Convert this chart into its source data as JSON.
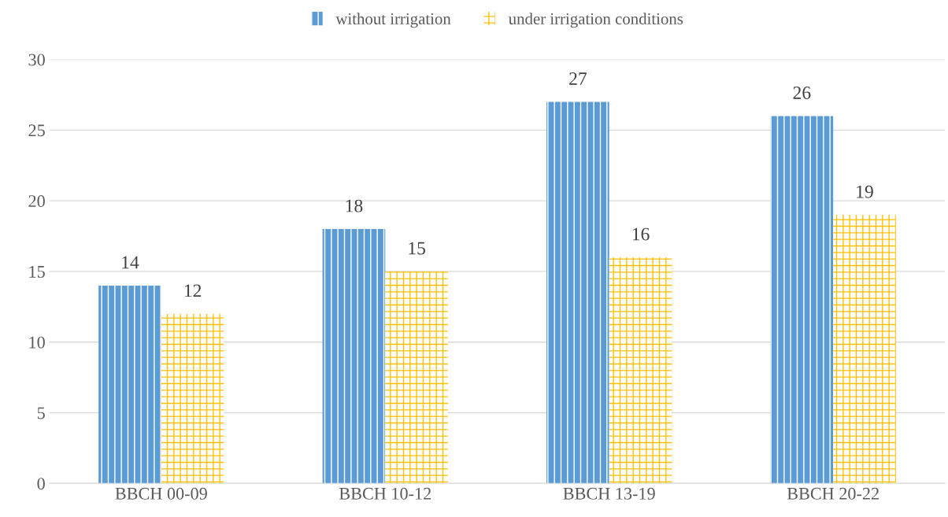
{
  "chart_data": {
    "type": "bar",
    "categories": [
      "BBCH 00-09",
      "BBCH 10-12",
      "BBCH 13-19",
      "BBCH 20-22"
    ],
    "series": [
      {
        "name": "without irrigation",
        "color": "#5b9bd5",
        "values": [
          14,
          18,
          27,
          26
        ]
      },
      {
        "name": "under irrigation conditions",
        "color": "#ffc000",
        "values": [
          12,
          15,
          16,
          19
        ]
      }
    ],
    "ylim": [
      0,
      30
    ],
    "yticks": [
      0,
      5,
      10,
      15,
      20,
      25,
      30
    ],
    "grid": "y",
    "legend": "top",
    "data_labels": true
  }
}
